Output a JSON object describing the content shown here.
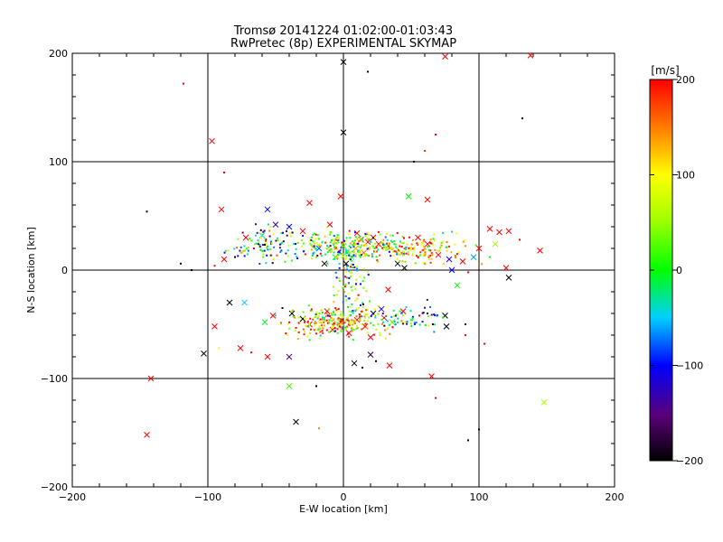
{
  "chart_data": {
    "type": "scatter",
    "title": "Tromsø 20141224 01:02:00-01:03:43",
    "subtitle": "RwPretec (8p) EXPERIMENTAL SKYMAP",
    "xlabel": "E-W location [km]",
    "ylabel": "N-S location [km]",
    "xlim": [
      -200,
      200
    ],
    "ylim": [
      -200,
      200
    ],
    "xticks": [
      -200,
      -100,
      0,
      100,
      200
    ],
    "yticks": [
      -200,
      -100,
      0,
      100,
      200
    ],
    "xtick_labels": [
      "−200",
      "−100",
      "0",
      "100",
      "200"
    ],
    "ytick_labels": [
      "−200",
      "−100",
      "0",
      "100",
      "200"
    ],
    "grid": true,
    "grid_lines": [
      -100,
      0,
      100
    ],
    "colorbar": {
      "label": "[m/s]",
      "range": [
        -200,
        200
      ],
      "ticks": [
        -200,
        -100,
        0,
        100,
        200
      ],
      "tick_labels": [
        "−200",
        "−100",
        "0",
        "100",
        "200"
      ]
    },
    "markers": {
      "large": "x",
      "small": "dot"
    },
    "points": [
      {
        "x": 0,
        "y": 192,
        "v": -200,
        "m": "x"
      },
      {
        "x": 18,
        "y": 183,
        "v": -200,
        "m": "dot"
      },
      {
        "x": 75,
        "y": 197,
        "v": 200,
        "m": "x"
      },
      {
        "x": 138,
        "y": 198,
        "v": 200,
        "m": "x"
      },
      {
        "x": -118,
        "y": 172,
        "v": 200,
        "m": "dot"
      },
      {
        "x": -97,
        "y": 119,
        "v": 200,
        "m": "x"
      },
      {
        "x": 0,
        "y": 127,
        "v": -200,
        "m": "x"
      },
      {
        "x": 132,
        "y": 140,
        "v": -200,
        "m": "dot"
      },
      {
        "x": 68,
        "y": 125,
        "v": 200,
        "m": "dot"
      },
      {
        "x": 60,
        "y": 110,
        "v": 180,
        "m": "dot"
      },
      {
        "x": 52,
        "y": 100,
        "v": -200,
        "m": "dot"
      },
      {
        "x": -88,
        "y": 90,
        "v": 200,
        "m": "dot"
      },
      {
        "x": 48,
        "y": 68,
        "v": 0,
        "m": "x"
      },
      {
        "x": 62,
        "y": 65,
        "v": 200,
        "m": "x"
      },
      {
        "x": -2,
        "y": 68,
        "v": 200,
        "m": "x"
      },
      {
        "x": -90,
        "y": 56,
        "v": 200,
        "m": "x"
      },
      {
        "x": -145,
        "y": 54,
        "v": -200,
        "m": "dot"
      },
      {
        "x": -56,
        "y": 56,
        "v": -100,
        "m": "x"
      },
      {
        "x": -25,
        "y": 62,
        "v": 200,
        "m": "x"
      },
      {
        "x": -40,
        "y": 40,
        "v": -100,
        "m": "x"
      },
      {
        "x": -30,
        "y": 36,
        "v": 200,
        "m": "x"
      },
      {
        "x": -50,
        "y": 42,
        "v": -130,
        "m": "x"
      },
      {
        "x": -60,
        "y": 32,
        "v": -50,
        "m": "x"
      },
      {
        "x": -72,
        "y": 30,
        "v": 200,
        "m": "x"
      },
      {
        "x": -66,
        "y": 20,
        "v": 200,
        "m": "dot"
      },
      {
        "x": -76,
        "y": 16,
        "v": 80,
        "m": "dot"
      },
      {
        "x": -88,
        "y": 10,
        "v": 200,
        "m": "x"
      },
      {
        "x": -80,
        "y": 12,
        "v": -200,
        "m": "dot"
      },
      {
        "x": -95,
        "y": 4,
        "v": 200,
        "m": "dot"
      },
      {
        "x": -120,
        "y": 6,
        "v": -200,
        "m": "dot"
      },
      {
        "x": -112,
        "y": 0,
        "v": -200,
        "m": "dot"
      },
      {
        "x": -10,
        "y": 42,
        "v": 200,
        "m": "x"
      },
      {
        "x": -5,
        "y": 30,
        "v": 40,
        "m": "x"
      },
      {
        "x": 0,
        "y": 22,
        "v": 10,
        "m": "x"
      },
      {
        "x": 3,
        "y": 17,
        "v": -40,
        "m": "x"
      },
      {
        "x": -6,
        "y": 12,
        "v": 0,
        "m": "x"
      },
      {
        "x": 6,
        "y": 12,
        "v": 30,
        "m": "x"
      },
      {
        "x": 2,
        "y": 6,
        "v": -200,
        "m": "x"
      },
      {
        "x": 9,
        "y": 20,
        "v": 130,
        "m": "x"
      },
      {
        "x": 13,
        "y": 28,
        "v": 200,
        "m": "x"
      },
      {
        "x": 18,
        "y": 26,
        "v": 200,
        "m": "x"
      },
      {
        "x": 22,
        "y": 30,
        "v": 200,
        "m": "x"
      },
      {
        "x": 26,
        "y": 24,
        "v": 200,
        "m": "x"
      },
      {
        "x": 10,
        "y": 34,
        "v": 200,
        "m": "x"
      },
      {
        "x": 15,
        "y": 16,
        "v": 160,
        "m": "x"
      },
      {
        "x": -18,
        "y": 20,
        "v": -80,
        "m": "x"
      },
      {
        "x": -24,
        "y": 28,
        "v": 100,
        "m": "x"
      },
      {
        "x": -14,
        "y": 6,
        "v": -200,
        "m": "x"
      },
      {
        "x": 40,
        "y": 6,
        "v": -200,
        "m": "x"
      },
      {
        "x": 45,
        "y": 2,
        "v": -200,
        "m": "x"
      },
      {
        "x": 55,
        "y": 30,
        "v": 200,
        "m": "x"
      },
      {
        "x": 62,
        "y": 24,
        "v": 200,
        "m": "x"
      },
      {
        "x": 70,
        "y": 14,
        "v": 200,
        "m": "x"
      },
      {
        "x": 78,
        "y": 10,
        "v": -120,
        "m": "x"
      },
      {
        "x": 80,
        "y": 0,
        "v": -100,
        "m": "x"
      },
      {
        "x": 88,
        "y": 8,
        "v": 200,
        "m": "x"
      },
      {
        "x": 96,
        "y": 12,
        "v": -60,
        "m": "x"
      },
      {
        "x": 100,
        "y": 20,
        "v": 200,
        "m": "x"
      },
      {
        "x": 108,
        "y": 38,
        "v": 200,
        "m": "x"
      },
      {
        "x": 112,
        "y": 24,
        "v": 50,
        "m": "x"
      },
      {
        "x": 115,
        "y": 35,
        "v": 200,
        "m": "x"
      },
      {
        "x": 122,
        "y": 36,
        "v": 200,
        "m": "x"
      },
      {
        "x": 130,
        "y": 28,
        "v": 200,
        "m": "dot"
      },
      {
        "x": 145,
        "y": 18,
        "v": 200,
        "m": "x"
      },
      {
        "x": 120,
        "y": 2,
        "v": 200,
        "m": "x"
      },
      {
        "x": 122,
        "y": -7,
        "v": -200,
        "m": "x"
      },
      {
        "x": 84,
        "y": -14,
        "v": 0,
        "m": "x"
      },
      {
        "x": 108,
        "y": 12,
        "v": 0,
        "m": "dot"
      },
      {
        "x": 92,
        "y": -2,
        "v": 200,
        "m": "dot"
      },
      {
        "x": 33,
        "y": -18,
        "v": 200,
        "m": "x"
      },
      {
        "x": -95,
        "y": -52,
        "v": 200,
        "m": "x"
      },
      {
        "x": -84,
        "y": -30,
        "v": -200,
        "m": "x"
      },
      {
        "x": -73,
        "y": -30,
        "v": -50,
        "m": "x"
      },
      {
        "x": -58,
        "y": -48,
        "v": -10,
        "m": "x"
      },
      {
        "x": -52,
        "y": -42,
        "v": 200,
        "m": "x"
      },
      {
        "x": -45,
        "y": -35,
        "v": -200,
        "m": "dot"
      },
      {
        "x": -38,
        "y": -40,
        "v": -200,
        "m": "x"
      },
      {
        "x": -30,
        "y": -45,
        "v": -200,
        "m": "x"
      },
      {
        "x": -25,
        "y": -50,
        "v": 200,
        "m": "x"
      },
      {
        "x": -20,
        "y": -42,
        "v": 100,
        "m": "x"
      },
      {
        "x": -12,
        "y": -38,
        "v": 200,
        "m": "x"
      },
      {
        "x": -8,
        "y": -55,
        "v": 200,
        "m": "x"
      },
      {
        "x": -2,
        "y": -48,
        "v": 200,
        "m": "x"
      },
      {
        "x": 4,
        "y": -58,
        "v": 200,
        "m": "x"
      },
      {
        "x": 10,
        "y": -46,
        "v": 200,
        "m": "x"
      },
      {
        "x": 16,
        "y": -52,
        "v": 200,
        "m": "x"
      },
      {
        "x": 22,
        "y": -40,
        "v": -200,
        "m": "x"
      },
      {
        "x": 28,
        "y": -36,
        "v": -120,
        "m": "x"
      },
      {
        "x": 20,
        "y": -62,
        "v": 200,
        "m": "x"
      },
      {
        "x": 30,
        "y": -44,
        "v": 200,
        "m": "x"
      },
      {
        "x": 36,
        "y": -48,
        "v": 20,
        "m": "x"
      },
      {
        "x": 44,
        "y": -38,
        "v": 200,
        "m": "x"
      },
      {
        "x": 56,
        "y": -42,
        "v": 200,
        "m": "dot"
      },
      {
        "x": 62,
        "y": -40,
        "v": -200,
        "m": "dot"
      },
      {
        "x": 75,
        "y": -42,
        "v": -200,
        "m": "x"
      },
      {
        "x": 76,
        "y": -52,
        "v": -200,
        "m": "x"
      },
      {
        "x": 66,
        "y": -50,
        "v": -200,
        "m": "dot"
      },
      {
        "x": 90,
        "y": -50,
        "v": -200,
        "m": "dot"
      },
      {
        "x": 90,
        "y": -60,
        "v": 200,
        "m": "dot"
      },
      {
        "x": 104,
        "y": -68,
        "v": 200,
        "m": "dot"
      },
      {
        "x": -103,
        "y": -77,
        "v": -200,
        "m": "x"
      },
      {
        "x": -76,
        "y": -72,
        "v": 200,
        "m": "x"
      },
      {
        "x": -56,
        "y": -80,
        "v": 200,
        "m": "x"
      },
      {
        "x": -40,
        "y": -80,
        "v": -150,
        "m": "x"
      },
      {
        "x": -68,
        "y": -76,
        "v": 200,
        "m": "dot"
      },
      {
        "x": -92,
        "y": -72,
        "v": 100,
        "m": "dot"
      },
      {
        "x": 8,
        "y": -86,
        "v": -200,
        "m": "x"
      },
      {
        "x": 14,
        "y": -90,
        "v": -200,
        "m": "dot"
      },
      {
        "x": 24,
        "y": -84,
        "v": -200,
        "m": "dot"
      },
      {
        "x": 34,
        "y": -88,
        "v": 200,
        "m": "x"
      },
      {
        "x": 20,
        "y": -78,
        "v": -180,
        "m": "x"
      },
      {
        "x": 65,
        "y": -98,
        "v": 200,
        "m": "x"
      },
      {
        "x": 68,
        "y": -118,
        "v": 200,
        "m": "dot"
      },
      {
        "x": -40,
        "y": -107,
        "v": 20,
        "m": "x"
      },
      {
        "x": -20,
        "y": -107,
        "v": -200,
        "m": "dot"
      },
      {
        "x": -142,
        "y": -100,
        "v": 200,
        "m": "x"
      },
      {
        "x": 148,
        "y": -122,
        "v": 60,
        "m": "x"
      },
      {
        "x": -35,
        "y": -140,
        "v": -200,
        "m": "x"
      },
      {
        "x": -18,
        "y": -146,
        "v": 150,
        "m": "dot"
      },
      {
        "x": 100,
        "y": -147,
        "v": -200,
        "m": "dot"
      },
      {
        "x": -145,
        "y": -152,
        "v": 200,
        "m": "x"
      },
      {
        "x": 92,
        "y": -157,
        "v": -200,
        "m": "dot"
      }
    ]
  }
}
